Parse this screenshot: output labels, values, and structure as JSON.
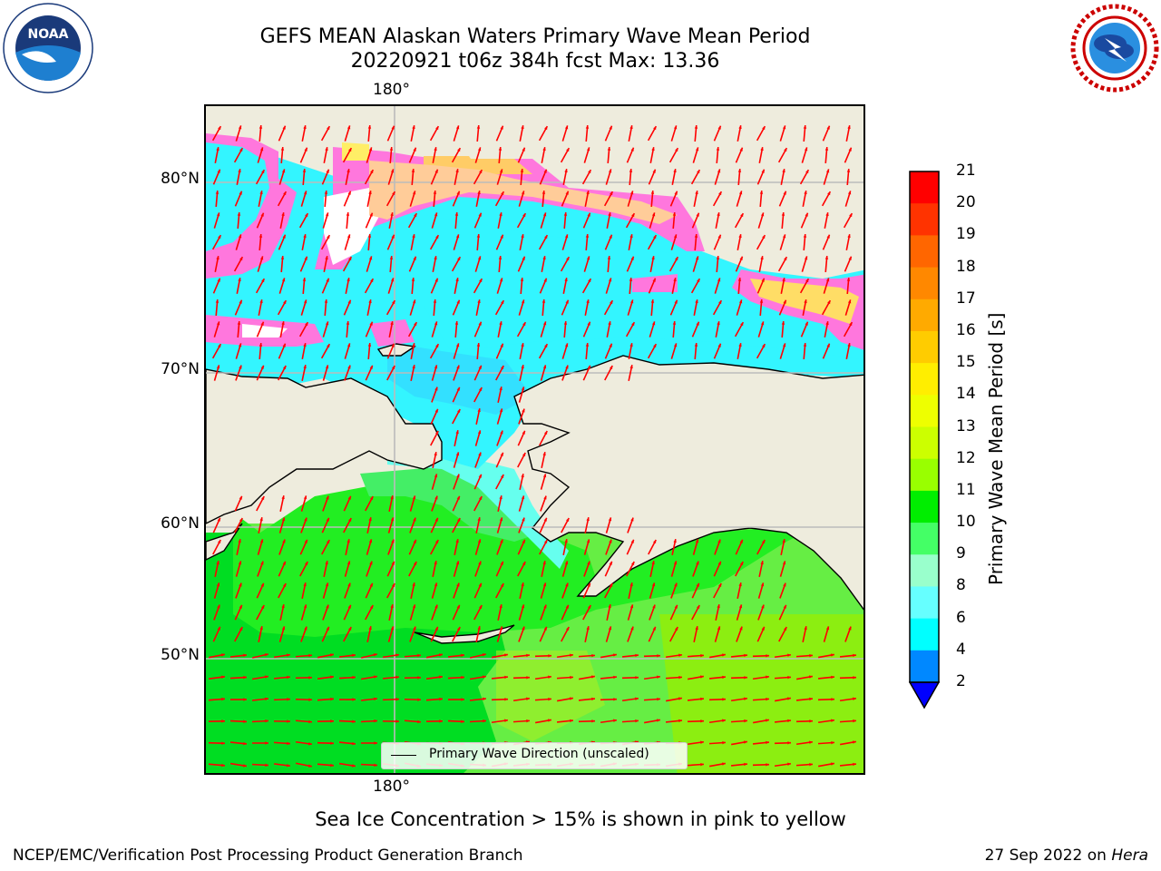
{
  "header": {
    "title_line1": "GEFS MEAN Alaskan Waters Primary Wave Mean Period",
    "title_line2": "20220921 t06z 384h fcst   Max: 13.36"
  },
  "logos": {
    "noaa": {
      "icon": "noaa-logo-icon",
      "text": "NOAA",
      "ring_text": "NATIONAL OCEANIC AND ATMOSPHERIC ADMINISTRATION · U.S. DEPARTMENT OF COMMERCE"
    },
    "nws": {
      "icon": "nws-logo-icon",
      "ring_text": "NATIONAL WEATHER SERVICE"
    }
  },
  "map": {
    "lon_label_top": "180°",
    "lon_label_bottom": "180°",
    "lat_labels": [
      "80°N",
      "70°N",
      "60°N",
      "50°N"
    ],
    "land_color": "#eeecdd",
    "ice_color": "#ff66dd",
    "arrow_color": "#ff0000",
    "legend_text": "Primary Wave Direction (unscaled)"
  },
  "colorbar": {
    "label": "Primary Wave Mean Period [s]",
    "ticks": [
      "21",
      "20",
      "19",
      "18",
      "17",
      "16",
      "15",
      "14",
      "13",
      "12",
      "11",
      "10",
      "9",
      "8",
      "6",
      "4",
      "2"
    ],
    "colors": [
      "#ff0000",
      "#ff3300",
      "#ff6600",
      "#ff8800",
      "#ffaa00",
      "#ffcc00",
      "#ffee00",
      "#eeff00",
      "#ccff00",
      "#99ff00",
      "#00ee00",
      "#44ff66",
      "#99ffcc",
      "#66ffff",
      "#00ffff",
      "#0088ff"
    ],
    "extend_color": "#0000ff"
  },
  "footer": {
    "note": "Sea Ice Concentration > 15% is shown in pink to yellow",
    "left": "NCEP/EMC/Verification Post Processing Product Generation Branch",
    "right_date": "27 Sep 2022 on ",
    "right_host": "Hera"
  }
}
